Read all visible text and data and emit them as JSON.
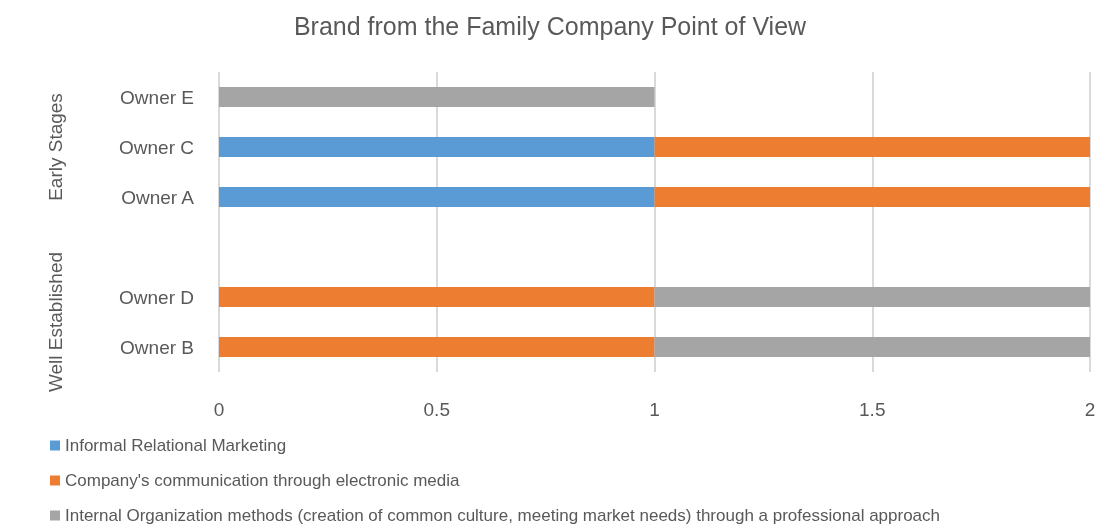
{
  "chart_data": {
    "type": "bar",
    "title": "Brand from the Family Company Point of View",
    "orientation": "horizontal",
    "stacked": true,
    "categories": [
      "Owner E",
      "Owner C",
      "Owner A",
      null,
      "Owner D",
      "Owner B"
    ],
    "series": [
      {
        "name": "Informal Relational Marketing",
        "color": "#5b9bd5",
        "values": [
          0,
          1,
          1,
          null,
          0,
          0
        ]
      },
      {
        "name": "Company's communication through electronic media",
        "color": "#ed7d31",
        "values": [
          0,
          1,
          1,
          null,
          1,
          1
        ]
      },
      {
        "name": "Internal Organization methods (creation of common culture, meeting market needs) through a professional approach",
        "color": "#a5a5a5",
        "values": [
          1,
          0,
          0,
          null,
          1,
          1
        ]
      }
    ],
    "xlim": [
      0,
      2
    ],
    "xticks": [
      0,
      0.5,
      1,
      1.5,
      2
    ],
    "grid": "x",
    "legend": "bottom",
    "annotations": [
      "Early Stages",
      "Well Established"
    ]
  }
}
